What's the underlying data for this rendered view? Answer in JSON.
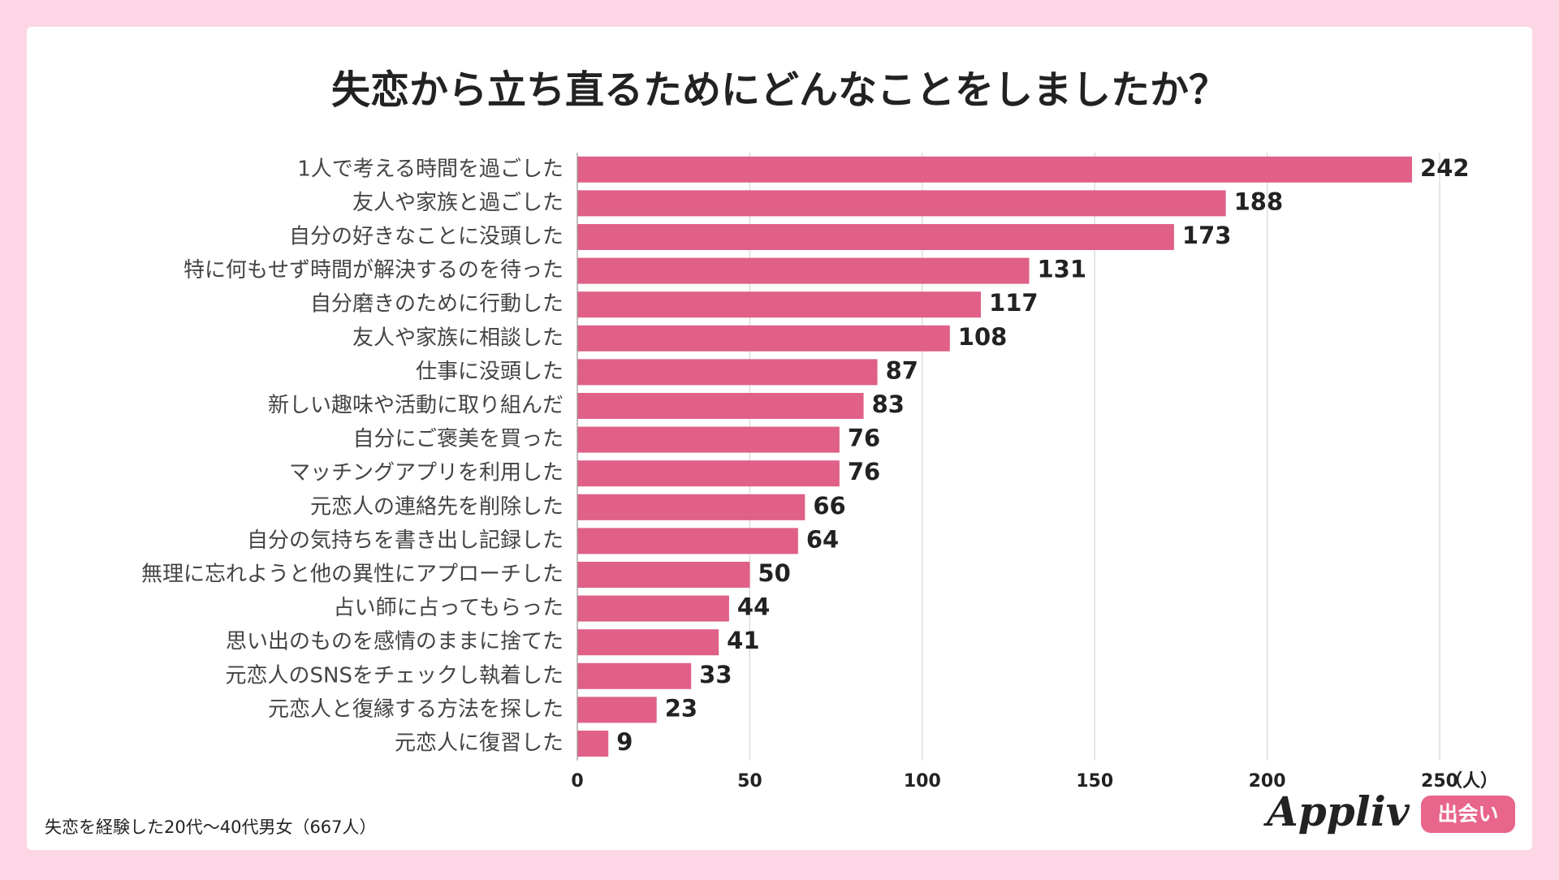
{
  "chart_data": {
    "type": "bar",
    "orientation": "horizontal",
    "title": "失恋から立ち直るためにどんなことをしましたか？",
    "categories": [
      "1人で考える時間を過ごした",
      "友人や家族と過ごした",
      "自分の好きなことに没頭した",
      "特に何もせず時間が解決するのを待った",
      "自分磨きのために行動した",
      "友人や家族に相談した",
      "仕事に没頭した",
      "新しい趣味や活動に取り組んだ",
      "自分にご褒美を買った",
      "マッチングアプリを利用した",
      "元恋人の連絡先を削除した",
      "自分の気持ちを書き出し記録した",
      "無理に忘れようと他の異性にアプローチした",
      "占い師に占ってもらった",
      "思い出のものを感情のままに捨てた",
      "元恋人のSNSをチェックし執着した",
      "元恋人と復縁する方法を探した",
      "元恋人に復習した"
    ],
    "values": [
      242,
      188,
      173,
      131,
      117,
      108,
      87,
      83,
      76,
      76,
      66,
      64,
      50,
      44,
      41,
      33,
      23,
      9
    ],
    "color": "#e06087",
    "xlim": [
      0,
      250
    ],
    "xticks": [
      0,
      50,
      100,
      150,
      200,
      250
    ],
    "grid": true,
    "x_unit": "（人）",
    "note": "失恋を経験した20代～40代男女（667人）",
    "logo": "Appliv",
    "logo_badge": "出会い"
  }
}
